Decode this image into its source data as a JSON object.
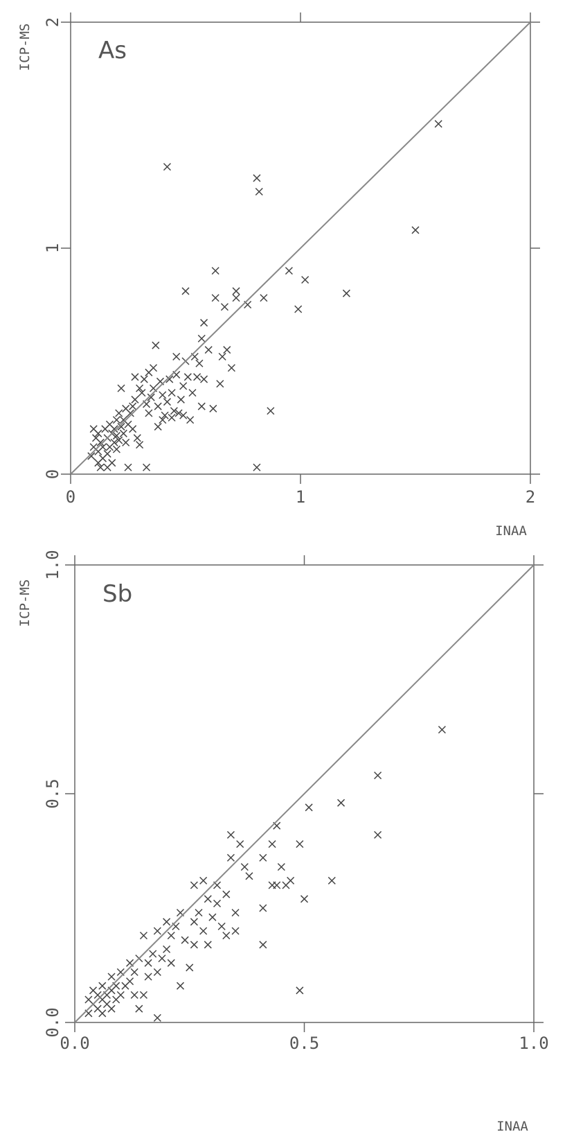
{
  "chart_data": [
    {
      "type": "scatter",
      "panel_label": "As",
      "xlabel": "INAA",
      "ylabel": "ICP-MS",
      "xlim": [
        0,
        2
      ],
      "ylim": [
        0,
        2
      ],
      "x_ticks": [
        "0",
        "1",
        "2"
      ],
      "y_ticks": [
        "0",
        "1",
        "2"
      ],
      "reference_line": "y = x",
      "marker": "x",
      "points": [
        [
          0.09,
          0.08
        ],
        [
          0.1,
          0.12
        ],
        [
          0.1,
          0.2
        ],
        [
          0.11,
          0.16
        ],
        [
          0.12,
          0.05
        ],
        [
          0.12,
          0.1
        ],
        [
          0.12,
          0.18
        ],
        [
          0.13,
          0.14
        ],
        [
          0.13,
          0.03
        ],
        [
          0.14,
          0.07
        ],
        [
          0.14,
          0.12
        ],
        [
          0.15,
          0.2
        ],
        [
          0.16,
          0.09
        ],
        [
          0.16,
          0.16
        ],
        [
          0.16,
          0.03
        ],
        [
          0.17,
          0.12
        ],
        [
          0.17,
          0.22
        ],
        [
          0.18,
          0.18
        ],
        [
          0.18,
          0.05
        ],
        [
          0.19,
          0.14
        ],
        [
          0.19,
          0.2
        ],
        [
          0.2,
          0.11
        ],
        [
          0.2,
          0.17
        ],
        [
          0.2,
          0.24
        ],
        [
          0.21,
          0.15
        ],
        [
          0.21,
          0.27
        ],
        [
          0.22,
          0.38
        ],
        [
          0.22,
          0.21
        ],
        [
          0.23,
          0.18
        ],
        [
          0.23,
          0.24
        ],
        [
          0.24,
          0.14
        ],
        [
          0.24,
          0.29
        ],
        [
          0.25,
          0.03
        ],
        [
          0.25,
          0.22
        ],
        [
          0.26,
          0.27
        ],
        [
          0.27,
          0.3
        ],
        [
          0.27,
          0.2
        ],
        [
          0.28,
          0.33
        ],
        [
          0.28,
          0.43
        ],
        [
          0.29,
          0.16
        ],
        [
          0.3,
          0.13
        ],
        [
          0.3,
          0.38
        ],
        [
          0.31,
          0.36
        ],
        [
          0.32,
          0.42
        ],
        [
          0.33,
          0.03
        ],
        [
          0.33,
          0.31
        ],
        [
          0.34,
          0.45
        ],
        [
          0.34,
          0.27
        ],
        [
          0.35,
          0.34
        ],
        [
          0.36,
          0.38
        ],
        [
          0.36,
          0.47
        ],
        [
          0.37,
          0.57
        ],
        [
          0.38,
          0.21
        ],
        [
          0.38,
          0.3
        ],
        [
          0.39,
          0.41
        ],
        [
          0.4,
          0.24
        ],
        [
          0.4,
          0.35
        ],
        [
          0.41,
          0.26
        ],
        [
          0.42,
          0.32
        ],
        [
          0.42,
          1.36
        ],
        [
          0.43,
          0.42
        ],
        [
          0.44,
          0.25
        ],
        [
          0.44,
          0.36
        ],
        [
          0.45,
          0.28
        ],
        [
          0.46,
          0.52
        ],
        [
          0.46,
          0.44
        ],
        [
          0.47,
          0.27
        ],
        [
          0.48,
          0.33
        ],
        [
          0.49,
          0.39
        ],
        [
          0.49,
          0.26
        ],
        [
          0.5,
          0.81
        ],
        [
          0.5,
          0.5
        ],
        [
          0.51,
          0.43
        ],
        [
          0.52,
          0.24
        ],
        [
          0.53,
          0.36
        ],
        [
          0.54,
          0.52
        ],
        [
          0.55,
          0.43
        ],
        [
          0.56,
          0.49
        ],
        [
          0.57,
          0.3
        ],
        [
          0.57,
          0.6
        ],
        [
          0.58,
          0.67
        ],
        [
          0.58,
          0.42
        ],
        [
          0.6,
          0.55
        ],
        [
          0.62,
          0.29
        ],
        [
          0.63,
          0.9
        ],
        [
          0.63,
          0.78
        ],
        [
          0.65,
          0.4
        ],
        [
          0.66,
          0.52
        ],
        [
          0.67,
          0.74
        ],
        [
          0.68,
          0.55
        ],
        [
          0.7,
          0.47
        ],
        [
          0.72,
          0.78
        ],
        [
          0.72,
          0.81
        ],
        [
          0.77,
          0.75
        ],
        [
          0.81,
          1.31
        ],
        [
          0.81,
          0.03
        ],
        [
          0.82,
          1.25
        ],
        [
          0.84,
          0.78
        ],
        [
          0.87,
          0.28
        ],
        [
          0.95,
          0.9
        ],
        [
          0.99,
          0.73
        ],
        [
          1.02,
          0.86
        ],
        [
          1.2,
          0.8
        ],
        [
          1.5,
          1.08
        ],
        [
          1.6,
          1.55
        ]
      ]
    },
    {
      "type": "scatter",
      "panel_label": "Sb",
      "xlabel": "INAA",
      "ylabel": "ICP-MS",
      "xlim": [
        0,
        1
      ],
      "ylim": [
        0,
        1
      ],
      "x_ticks": [
        "0.0",
        "0.5",
        "1.0"
      ],
      "y_ticks": [
        "0.0",
        "0.5",
        "1.0"
      ],
      "reference_line": "y = x",
      "marker": "x",
      "points": [
        [
          0.03,
          0.02
        ],
        [
          0.03,
          0.05
        ],
        [
          0.04,
          0.04
        ],
        [
          0.04,
          0.07
        ],
        [
          0.05,
          0.03
        ],
        [
          0.05,
          0.06
        ],
        [
          0.06,
          0.02
        ],
        [
          0.06,
          0.05
        ],
        [
          0.06,
          0.08
        ],
        [
          0.07,
          0.04
        ],
        [
          0.07,
          0.06
        ],
        [
          0.08,
          0.03
        ],
        [
          0.08,
          0.07
        ],
        [
          0.08,
          0.1
        ],
        [
          0.09,
          0.05
        ],
        [
          0.09,
          0.08
        ],
        [
          0.1,
          0.06
        ],
        [
          0.1,
          0.11
        ],
        [
          0.11,
          0.08
        ],
        [
          0.12,
          0.09
        ],
        [
          0.12,
          0.13
        ],
        [
          0.13,
          0.06
        ],
        [
          0.13,
          0.11
        ],
        [
          0.14,
          0.03
        ],
        [
          0.14,
          0.14
        ],
        [
          0.15,
          0.06
        ],
        [
          0.15,
          0.19
        ],
        [
          0.16,
          0.1
        ],
        [
          0.16,
          0.13
        ],
        [
          0.17,
          0.15
        ],
        [
          0.18,
          0.11
        ],
        [
          0.18,
          0.2
        ],
        [
          0.18,
          0.01
        ],
        [
          0.19,
          0.14
        ],
        [
          0.2,
          0.16
        ],
        [
          0.2,
          0.22
        ],
        [
          0.21,
          0.13
        ],
        [
          0.21,
          0.19
        ],
        [
          0.22,
          0.21
        ],
        [
          0.23,
          0.08
        ],
        [
          0.23,
          0.24
        ],
        [
          0.24,
          0.18
        ],
        [
          0.25,
          0.12
        ],
        [
          0.26,
          0.22
        ],
        [
          0.26,
          0.17
        ],
        [
          0.26,
          0.3
        ],
        [
          0.27,
          0.24
        ],
        [
          0.28,
          0.31
        ],
        [
          0.28,
          0.2
        ],
        [
          0.29,
          0.17
        ],
        [
          0.29,
          0.27
        ],
        [
          0.3,
          0.23
        ],
        [
          0.31,
          0.3
        ],
        [
          0.31,
          0.26
        ],
        [
          0.32,
          0.21
        ],
        [
          0.33,
          0.28
        ],
        [
          0.33,
          0.19
        ],
        [
          0.34,
          0.41
        ],
        [
          0.34,
          0.36
        ],
        [
          0.35,
          0.24
        ],
        [
          0.35,
          0.2
        ],
        [
          0.36,
          0.39
        ],
        [
          0.37,
          0.34
        ],
        [
          0.38,
          0.32
        ],
        [
          0.41,
          0.36
        ],
        [
          0.41,
          0.25
        ],
        [
          0.41,
          0.17
        ],
        [
          0.43,
          0.39
        ],
        [
          0.43,
          0.3
        ],
        [
          0.44,
          0.43
        ],
        [
          0.44,
          0.3
        ],
        [
          0.45,
          0.34
        ],
        [
          0.46,
          0.3
        ],
        [
          0.47,
          0.31
        ],
        [
          0.49,
          0.39
        ],
        [
          0.49,
          0.07
        ],
        [
          0.5,
          0.27
        ],
        [
          0.51,
          0.47
        ],
        [
          0.56,
          0.31
        ],
        [
          0.58,
          0.48
        ],
        [
          0.66,
          0.54
        ],
        [
          0.66,
          0.41
        ],
        [
          0.8,
          0.64
        ]
      ]
    }
  ]
}
